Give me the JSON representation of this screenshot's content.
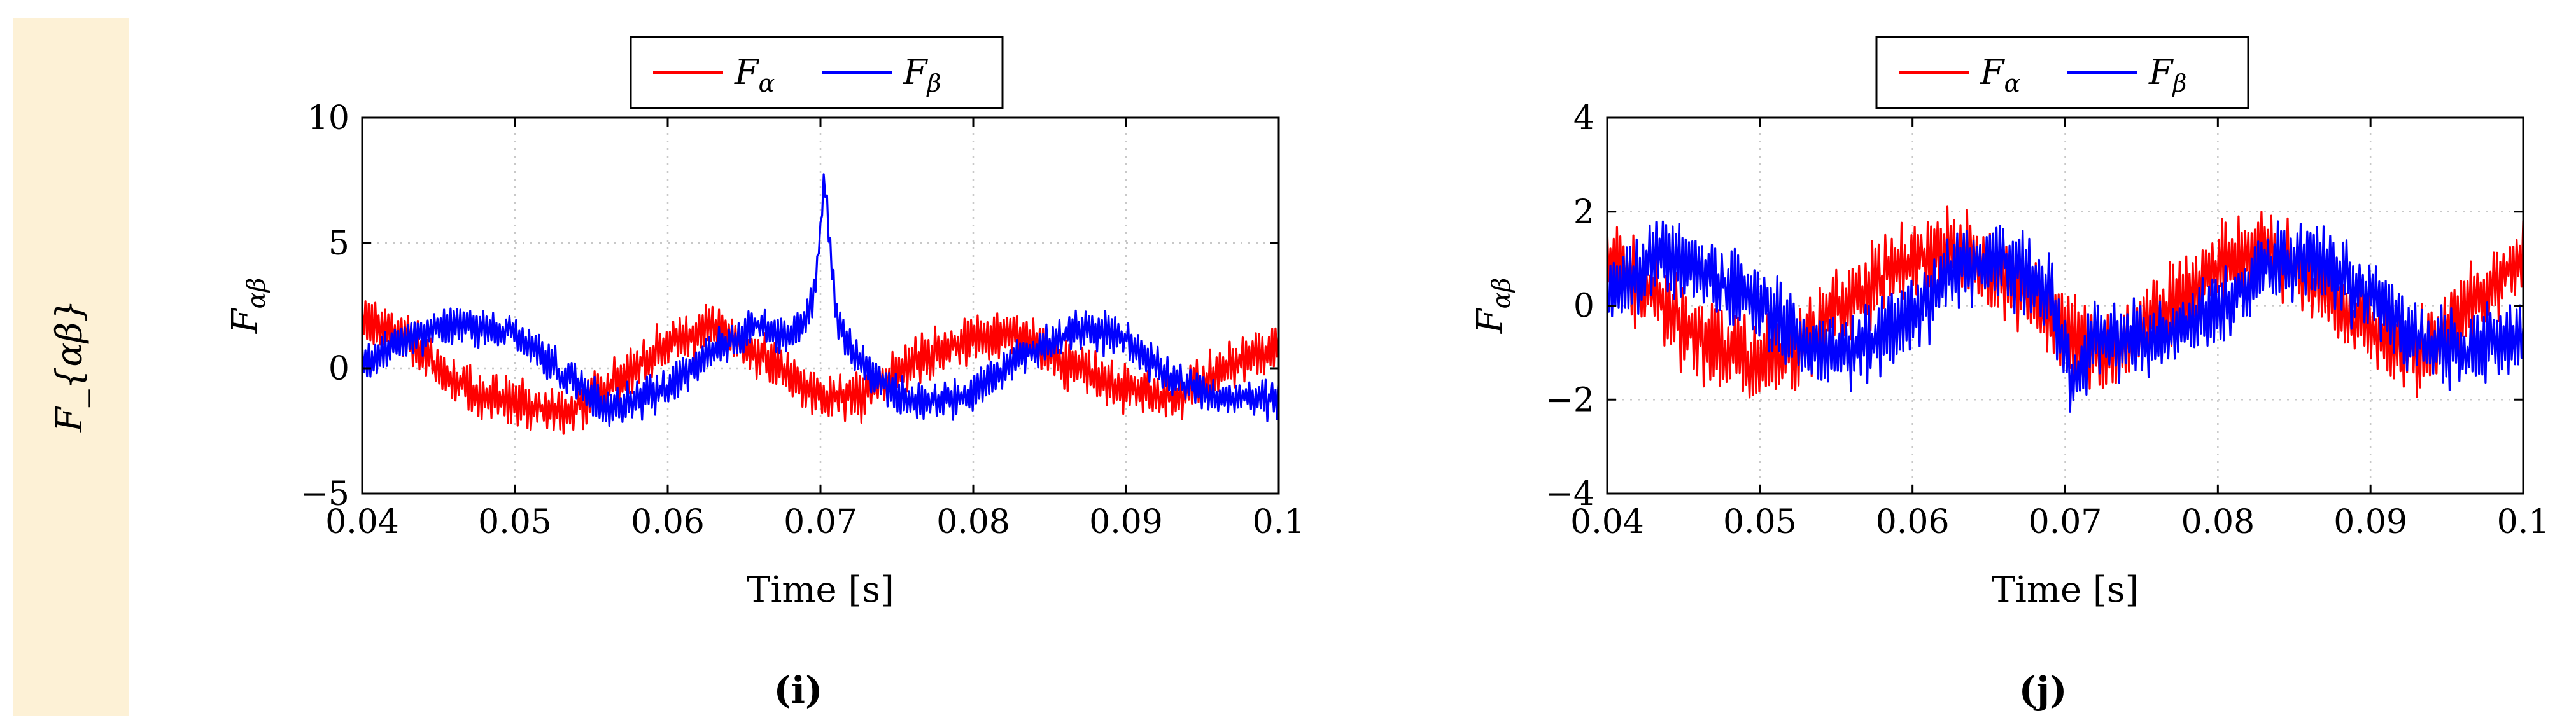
{
  "row_label": "F_{αβ}",
  "chart_data": [
    {
      "type": "line",
      "panel_label": "(i)",
      "xlabel": "Time [s]",
      "ylabel": "F_{αβ}",
      "xlim": [
        0.04,
        0.1
      ],
      "ylim": [
        -5,
        10
      ],
      "xticks": [
        "0.04",
        "0.05",
        "0.06",
        "0.07",
        "0.08",
        "0.09",
        "0.1"
      ],
      "yticks": [
        "−5",
        "0",
        "5",
        "10"
      ],
      "grid": true,
      "legend_position": "top-center",
      "series": [
        {
          "name": "F_α",
          "color": "#ff0000",
          "x": [
            0.04,
            0.043,
            0.046,
            0.05,
            0.053,
            0.056,
            0.06,
            0.063,
            0.066,
            0.07,
            0.073,
            0.076,
            0.08,
            0.083,
            0.086,
            0.09,
            0.093,
            0.096,
            0.1
          ],
          "y": [
            2.0,
            1.2,
            -0.6,
            -1.4,
            -1.8,
            -0.8,
            1.0,
            1.6,
            0.6,
            -1.2,
            -1.0,
            0.2,
            1.2,
            1.4,
            0.2,
            -0.8,
            -1.2,
            -0.2,
            1.0
          ],
          "noise": 1.1
        },
        {
          "name": "F_β",
          "color": "#0000ff",
          "x": [
            0.04,
            0.043,
            0.046,
            0.05,
            0.053,
            0.056,
            0.06,
            0.063,
            0.066,
            0.068,
            0.0695,
            0.0703,
            0.071,
            0.0725,
            0.076,
            0.08,
            0.083,
            0.087,
            0.09,
            0.093,
            0.096,
            0.1
          ],
          "y": [
            0.2,
            1.2,
            1.8,
            1.4,
            -0.2,
            -1.6,
            -0.8,
            0.8,
            1.8,
            1.2,
            2.5,
            7.6,
            2.2,
            0.2,
            -1.4,
            -1.0,
            0.4,
            1.6,
            1.2,
            -0.4,
            -1.2,
            -1.2
          ],
          "noise": 0.9
        }
      ]
    },
    {
      "type": "line",
      "panel_label": "(j)",
      "xlabel": "Time [s]",
      "ylabel": "F_{αβ}",
      "xlim": [
        0.04,
        0.1
      ],
      "ylim": [
        -4,
        4
      ],
      "xticks": [
        "0.04",
        "0.05",
        "0.06",
        "0.07",
        "0.08",
        "0.09",
        "0.1"
      ],
      "yticks": [
        "−4",
        "−2",
        "0",
        "2",
        "4"
      ],
      "grid": true,
      "legend_position": "top-center",
      "series": [
        {
          "name": "F_α",
          "color": "#ff0000",
          "x": [
            0.04,
            0.043,
            0.046,
            0.05,
            0.053,
            0.056,
            0.06,
            0.063,
            0.066,
            0.07,
            0.073,
            0.076,
            0.08,
            0.083,
            0.086,
            0.09,
            0.093,
            0.096,
            0.1
          ],
          "y": [
            1.0,
            0.2,
            -0.8,
            -1.2,
            -0.8,
            0.2,
            1.0,
            1.2,
            0.6,
            -0.6,
            -1.0,
            -0.2,
            0.8,
            1.2,
            0.6,
            -0.6,
            -1.0,
            -0.2,
            1.0
          ],
          "noise": 1.0
        },
        {
          "name": "F_β",
          "color": "#0000ff",
          "x": [
            0.04,
            0.043,
            0.046,
            0.05,
            0.053,
            0.056,
            0.06,
            0.063,
            0.066,
            0.069,
            0.0705,
            0.072,
            0.076,
            0.08,
            0.083,
            0.086,
            0.09,
            0.093,
            0.096,
            0.1
          ],
          "y": [
            0.2,
            0.9,
            0.8,
            0.0,
            -0.9,
            -1.0,
            -0.2,
            0.8,
            1.0,
            0.2,
            -1.6,
            -0.6,
            -0.8,
            0.0,
            0.8,
            1.0,
            0.2,
            -0.7,
            -1.0,
            -0.6
          ],
          "noise": 1.0
        }
      ]
    }
  ]
}
